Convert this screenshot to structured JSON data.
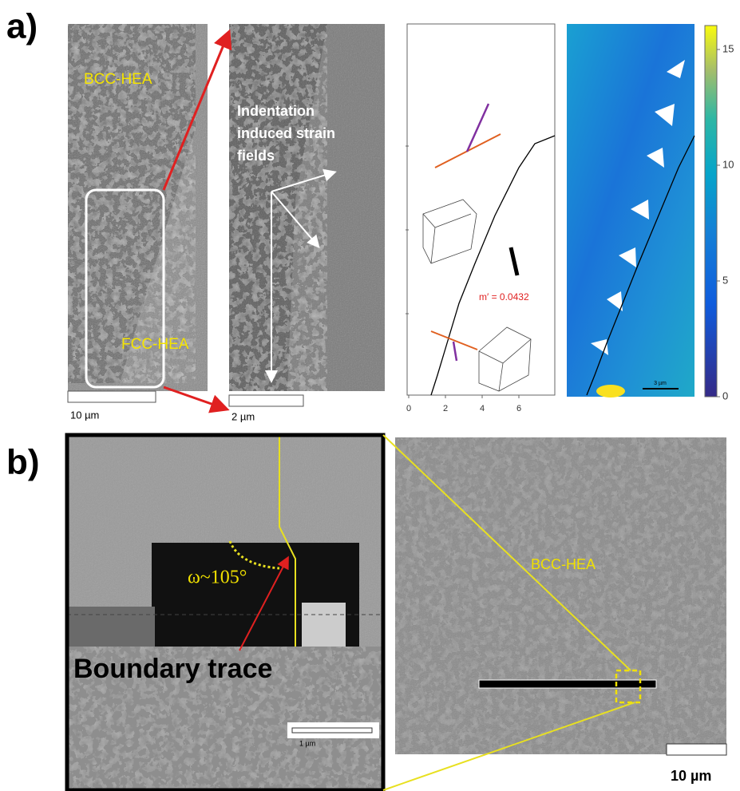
{
  "panel_a": {
    "label": "a)",
    "sem_overview": {
      "phase_top": "BCC-HEA",
      "phase_bottom": "FCC-HEA",
      "scale_bar": "10 µm"
    },
    "sem_zoom": {
      "annotation": [
        "Indentation",
        "induced strain",
        "fields"
      ],
      "scale_bar": "2 µm"
    },
    "trace_plot": {
      "xticks": [
        0,
        2,
        4,
        6
      ],
      "annotation": "m′ = 0.0432"
    },
    "strain_map": {
      "scale_bar": "3 µm",
      "colorbar_ticks": [
        0,
        5,
        10,
        15
      ]
    }
  },
  "panel_b": {
    "label": "b)",
    "fib_view": {
      "angle": "ω~105°",
      "annotation": "Boundary trace",
      "scale_bar": "1 µm"
    },
    "sem_overview": {
      "phase": "BCC-HEA",
      "scale_bar": "10 µm"
    }
  }
}
